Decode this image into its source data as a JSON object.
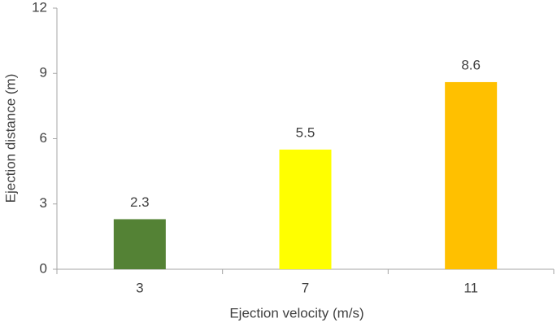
{
  "chart_data": {
    "type": "bar",
    "x_label": "Ejection velocity (m/s)",
    "y_label": "Ejection distance (m)",
    "categories": [
      "3",
      "7",
      "11"
    ],
    "values": [
      2.3,
      5.5,
      8.6
    ],
    "colors": [
      "#548235",
      "#ffff00",
      "#ffc000"
    ],
    "ylim": [
      0,
      12
    ],
    "yticks": [
      0,
      3,
      6,
      9,
      12
    ],
    "grid": false,
    "data_labels": true
  }
}
